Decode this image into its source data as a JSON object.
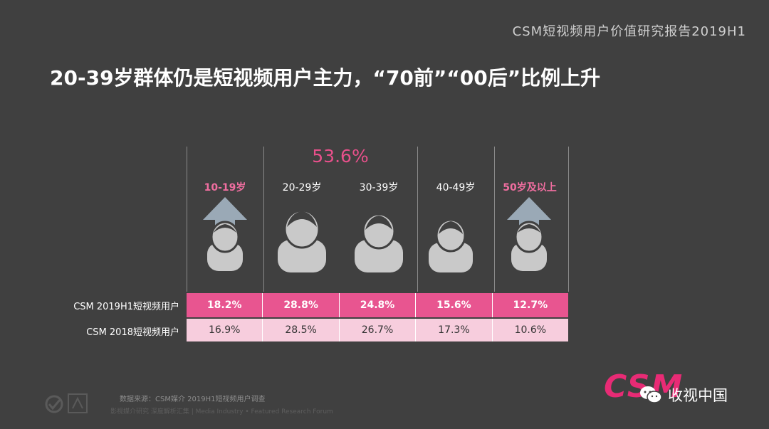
{
  "header": {
    "report_title": "CSM短视频用户价值研究报告2019H1"
  },
  "slide": {
    "title": "20-39岁群体仍是短视频用户主力，“70前”“00后”比例上升"
  },
  "chart_data": {
    "type": "table",
    "highlight_label": "53.6%",
    "categories": [
      "10-19岁",
      "20-29岁",
      "30-39岁",
      "40-49岁",
      "50岁及以上"
    ],
    "categories_highlighted": [
      true,
      false,
      false,
      false,
      true
    ],
    "series": [
      {
        "name": "CSM 2019H1短视频用户",
        "values": [
          "18.2%",
          "28.8%",
          "24.8%",
          "15.6%",
          "12.7%"
        ]
      },
      {
        "name": "CSM 2018短视频用户",
        "values": [
          "16.9%",
          "28.5%",
          "26.7%",
          "17.3%",
          "10.6%"
        ]
      }
    ],
    "arrow_up_categories": [
      "10-19岁",
      "50岁及以上"
    ]
  },
  "footer": {
    "source": "数据来源：CSM媒介 2019H1短视频用户调查",
    "sub": "影视媒介研究  深度解析汇集 | Media Industry • Featured Research Forum",
    "logo_text": "CSM",
    "wechat_name": "收视中国"
  },
  "colors": {
    "accent": "#e85590",
    "light": "#f7cddd",
    "bg": "#404040"
  }
}
